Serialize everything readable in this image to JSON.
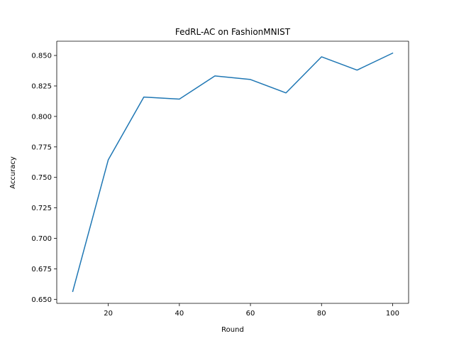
{
  "chart_data": {
    "type": "line",
    "title": "FedRL-AC on FashionMNIST",
    "xlabel": "Round",
    "ylabel": "Accuracy",
    "x": [
      10,
      20,
      30,
      40,
      50,
      60,
      70,
      80,
      90,
      100
    ],
    "series": [
      {
        "values": [
          0.6565,
          0.7645,
          0.8159,
          0.8142,
          0.8332,
          0.8303,
          0.8193,
          0.8489,
          0.838,
          0.8519
        ],
        "color": "#1f77b4"
      }
    ],
    "xlim": [
      5.5,
      104.5
    ],
    "ylim": [
      0.6467,
      0.8617
    ],
    "xticks": [
      20,
      40,
      60,
      80,
      100
    ],
    "yticks": [
      0.65,
      0.675,
      0.7,
      0.725,
      0.75,
      0.775,
      0.8,
      0.825,
      0.85
    ],
    "ytick_labels": [
      "0.650",
      "0.675",
      "0.700",
      "0.725",
      "0.750",
      "0.775",
      "0.800",
      "0.825",
      "0.850"
    ],
    "grid": false,
    "legend": "none"
  }
}
